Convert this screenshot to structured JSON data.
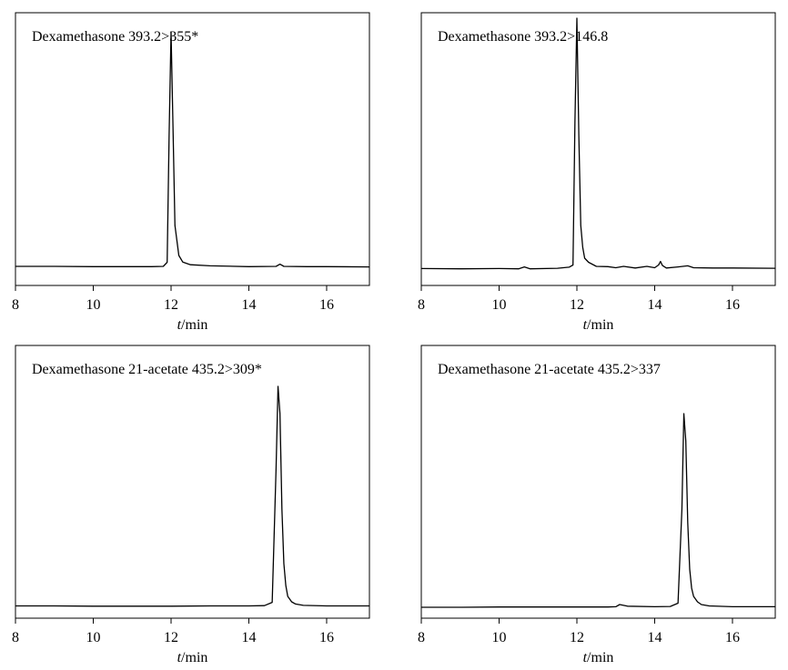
{
  "chart_data": [
    {
      "type": "line",
      "title": "Dexamethasone 393.2>355*",
      "xlabel_italic": "t",
      "xlabel_rest": "/min",
      "xlim": [
        8,
        17.1
      ],
      "ylim": [
        0,
        100
      ],
      "xticks": [
        8,
        10,
        12,
        14,
        16
      ],
      "series": [
        {
          "x": [
            8.0,
            9.0,
            10.0,
            11.0,
            11.5,
            11.8,
            11.9,
            11.95,
            12.0,
            12.05,
            12.1,
            12.2,
            12.3,
            12.5,
            13.0,
            14.0,
            14.7,
            14.8,
            14.9,
            15.5,
            16.0,
            17.1
          ],
          "y": [
            7.0,
            7.0,
            6.9,
            6.9,
            6.9,
            7.0,
            8.5,
            55.0,
            93.0,
            58.0,
            22.0,
            11.0,
            8.6,
            7.6,
            7.2,
            6.9,
            7.0,
            7.8,
            7.0,
            6.9,
            6.9,
            6.8
          ]
        }
      ]
    },
    {
      "type": "line",
      "title": "Dexamethasone 393.2>146.8",
      "xlabel_italic": "t",
      "xlabel_rest": "/min",
      "xlim": [
        8,
        17.1
      ],
      "ylim": [
        0,
        100
      ],
      "xticks": [
        8,
        10,
        12,
        14,
        16
      ],
      "series": [
        {
          "x": [
            8.0,
            9.0,
            10.0,
            10.5,
            10.65,
            10.8,
            11.5,
            11.8,
            11.9,
            11.95,
            12.0,
            12.05,
            12.1,
            12.15,
            12.2,
            12.3,
            12.5,
            12.8,
            13.0,
            13.2,
            13.5,
            13.8,
            14.0,
            14.1,
            14.15,
            14.2,
            14.3,
            14.6,
            14.85,
            15.0,
            15.5,
            16.0,
            17.1
          ],
          "y": [
            6.2,
            6.1,
            6.2,
            6.1,
            6.8,
            6.1,
            6.3,
            6.7,
            7.5,
            60.0,
            98.0,
            55.0,
            22.0,
            14.0,
            10.0,
            8.5,
            7.0,
            6.9,
            6.5,
            7.0,
            6.4,
            7.0,
            6.5,
            7.5,
            8.8,
            7.3,
            6.4,
            6.8,
            7.2,
            6.5,
            6.4,
            6.4,
            6.3
          ]
        }
      ]
    },
    {
      "type": "line",
      "title": "Dexamethasone 21-acetate 435.2>309*",
      "xlabel_italic": "t",
      "xlabel_rest": "/min",
      "xlim": [
        8,
        17.1
      ],
      "ylim": [
        0,
        100
      ],
      "xticks": [
        8,
        10,
        12,
        14,
        16
      ],
      "series": [
        {
          "x": [
            8.0,
            9.0,
            10.0,
            11.0,
            12.0,
            13.0,
            14.0,
            14.4,
            14.6,
            14.7,
            14.75,
            14.8,
            14.85,
            14.9,
            14.95,
            15.0,
            15.1,
            15.2,
            15.4,
            16.0,
            17.1
          ],
          "y": [
            4.5,
            4.5,
            4.4,
            4.4,
            4.4,
            4.5,
            4.5,
            4.6,
            5.8,
            55.0,
            85.0,
            75.0,
            40.0,
            20.0,
            12.0,
            8.0,
            6.0,
            5.2,
            4.7,
            4.5,
            4.5
          ]
        }
      ]
    },
    {
      "type": "line",
      "title": "Dexamethasone 21-acetate 435.2>337",
      "xlabel_italic": "t",
      "xlabel_rest": "/min",
      "xlim": [
        8,
        17.1
      ],
      "ylim": [
        0,
        100
      ],
      "xticks": [
        8,
        10,
        12,
        14,
        16
      ],
      "series": [
        {
          "x": [
            8.0,
            9.0,
            10.0,
            11.0,
            12.0,
            12.8,
            13.0,
            13.1,
            13.3,
            14.0,
            14.4,
            14.6,
            14.7,
            14.75,
            14.8,
            14.85,
            14.9,
            14.95,
            15.0,
            15.1,
            15.2,
            15.4,
            16.0,
            17.1
          ],
          "y": [
            4.0,
            4.0,
            4.1,
            4.1,
            4.1,
            4.1,
            4.2,
            5.0,
            4.4,
            4.2,
            4.3,
            5.5,
            40.0,
            75.0,
            65.0,
            35.0,
            18.0,
            11.0,
            8.0,
            6.0,
            5.0,
            4.5,
            4.2,
            4.2
          ]
        }
      ]
    }
  ]
}
